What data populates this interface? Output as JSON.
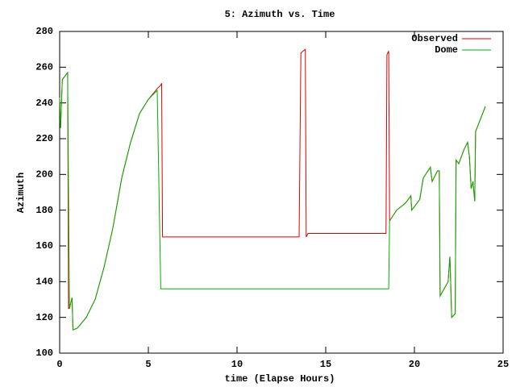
{
  "chart_data": {
    "type": "line",
    "title": "5: Azimuth vs. Time",
    "xlabel": "time (Elapse Hours)",
    "ylabel": "Azimuth",
    "x": [
      0,
      0.05,
      0.15,
      0.45,
      0.5,
      0.55,
      0.7,
      0.75,
      1,
      1.5,
      2,
      2.5,
      3,
      3.5,
      4,
      4.5,
      5,
      5.5,
      5.7,
      5.75,
      5.8,
      13.4,
      13.5,
      13.6,
      13.85,
      13.9,
      14,
      18.3,
      18.4,
      18.45,
      18.55,
      18.6,
      19,
      19.5,
      19.8,
      19.85,
      20.3,
      20.5,
      20.9,
      21,
      21.3,
      21.4,
      21.45,
      21.9,
      22,
      22.05,
      22.1,
      22.3,
      22.35,
      22.5,
      22.8,
      23,
      23.1,
      23.2,
      23.3,
      23.4,
      23.45,
      24
    ],
    "series": [
      {
        "name": "Observed",
        "color": "#e00000",
        "values": [
          243,
          226,
          253,
          257,
          125,
          125,
          131,
          113,
          114,
          120,
          130,
          148,
          170,
          198,
          218,
          234,
          242,
          248,
          250,
          251,
          165,
          165,
          165,
          268,
          270,
          165,
          167,
          167,
          167,
          267,
          269,
          174,
          180,
          184,
          188,
          180,
          186,
          198,
          204,
          196,
          202,
          202,
          132,
          140,
          154,
          138,
          120,
          122,
          208,
          206,
          214,
          218,
          210,
          192,
          196,
          185,
          224,
          238
        ]
      },
      {
        "name": "Dome",
        "color": "#00b000",
        "values": [
          243,
          226,
          253,
          257,
          190,
          125,
          131,
          113,
          114,
          120,
          130,
          148,
          170,
          198,
          218,
          234,
          242,
          247,
          136,
          136,
          136,
          136,
          136,
          136,
          136,
          136,
          136,
          136,
          136,
          136,
          136,
          174,
          180,
          184,
          188,
          180,
          186,
          198,
          204,
          196,
          202,
          202,
          132,
          140,
          154,
          138,
          120,
          122,
          208,
          206,
          214,
          218,
          210,
          192,
          196,
          185,
          224,
          238
        ]
      }
    ],
    "xlim": [
      0,
      25
    ],
    "xticks": [
      0,
      5,
      10,
      15,
      20,
      25
    ],
    "ylim": [
      100,
      280
    ],
    "yticks": [
      100,
      120,
      140,
      160,
      180,
      200,
      220,
      240,
      260,
      280
    ],
    "legend": "top-right"
  }
}
